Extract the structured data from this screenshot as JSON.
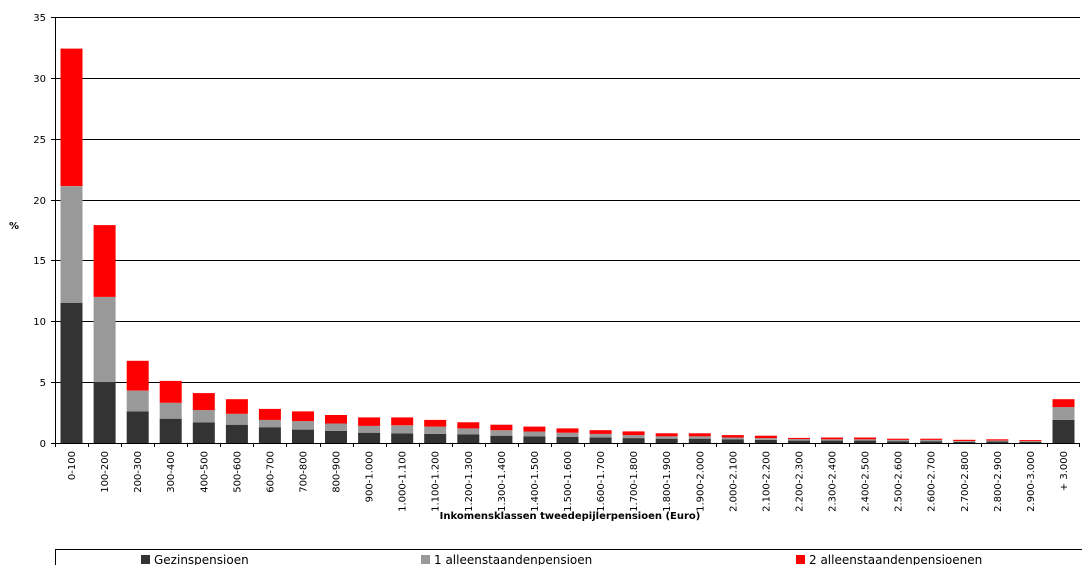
{
  "chart_data": {
    "type": "bar",
    "stacked": true,
    "title": "",
    "xlabel": "Inkomensklassen tweedepijlerpensioen (Euro)",
    "ylabel": "%",
    "ylim": [
      0,
      35
    ],
    "yticks": [
      0,
      5,
      10,
      15,
      20,
      25,
      30,
      35
    ],
    "grid": true,
    "legend_position": "bottom",
    "categories": [
      "0-100",
      "100-200",
      "200-300",
      "300-400",
      "400-500",
      "500-600",
      "600-700",
      "700-800",
      "800-900",
      "900-1.000",
      "1.000-1.100",
      "1.100-1.200",
      "1.200-1.300",
      "1.300-1.400",
      "1.400-1.500",
      "1.500-1.600",
      "1.600-1.700",
      "1.700-1.800",
      "1.800-1.900",
      "1.900-2.000",
      "2.000-2.100",
      "2.100-2.200",
      "2.200-2.300",
      "2.300-2.400",
      "2.400-2.500",
      "2.500-2.600",
      "2.600-2.700",
      "2.700-2.800",
      "2.800-2.900",
      "2.900-3.000",
      "+ 3.000"
    ],
    "series": [
      {
        "name": "Gezinspensioen",
        "color": "#333333",
        "values": [
          11.5,
          5.0,
          2.6,
          2.0,
          1.7,
          1.5,
          1.3,
          1.1,
          1.0,
          0.85,
          0.8,
          0.75,
          0.7,
          0.6,
          0.55,
          0.5,
          0.45,
          0.4,
          0.35,
          0.35,
          0.3,
          0.25,
          0.2,
          0.2,
          0.2,
          0.15,
          0.15,
          0.1,
          0.12,
          0.1,
          1.9
        ]
      },
      {
        "name": "1 alleenstaandenpensioen",
        "color": "#999999",
        "values": [
          9.6,
          7.0,
          1.7,
          1.3,
          1.0,
          0.9,
          0.6,
          0.7,
          0.6,
          0.55,
          0.65,
          0.6,
          0.5,
          0.45,
          0.4,
          0.35,
          0.3,
          0.25,
          0.2,
          0.2,
          0.15,
          0.15,
          0.12,
          0.1,
          0.1,
          0.1,
          0.1,
          0.06,
          0.08,
          0.06,
          1.05
        ]
      },
      {
        "name": "2 alleenstaandenpensioenen",
        "color": "#ff0000",
        "values": [
          11.3,
          5.9,
          2.45,
          1.8,
          1.4,
          1.2,
          0.9,
          0.8,
          0.7,
          0.7,
          0.65,
          0.55,
          0.5,
          0.45,
          0.4,
          0.35,
          0.3,
          0.3,
          0.25,
          0.25,
          0.2,
          0.2,
          0.1,
          0.15,
          0.15,
          0.1,
          0.1,
          0.1,
          0.1,
          0.08,
          0.65
        ]
      }
    ]
  }
}
